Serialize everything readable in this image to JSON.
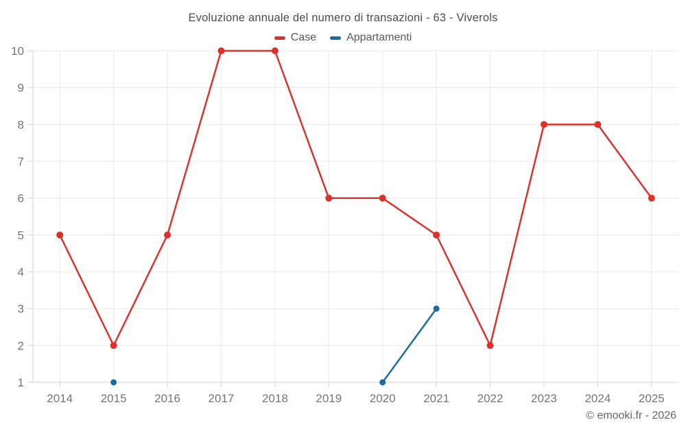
{
  "title": "Evoluzione annuale del numero di transazioni - 63 - Viverols",
  "footer": "© emooki.fr - 2026",
  "legend": {
    "items": [
      {
        "label": "Case",
        "color": "#db322c"
      },
      {
        "label": "Appartamenti",
        "color": "#1a6ca3"
      }
    ]
  },
  "chart_data": {
    "type": "line",
    "categories": [
      "2014",
      "2015",
      "2016",
      "2017",
      "2018",
      "2019",
      "2020",
      "2021",
      "2022",
      "2023",
      "2024",
      "2025"
    ],
    "series": [
      {
        "name": "Case",
        "color": "#db322c",
        "values": [
          5,
          2,
          5,
          10,
          10,
          6,
          6,
          5,
          2,
          8,
          8,
          6
        ]
      },
      {
        "name": "Appartamenti",
        "color": "#1a6ca3",
        "values": [
          null,
          1,
          null,
          null,
          null,
          null,
          1,
          3,
          null,
          null,
          null,
          null
        ]
      }
    ],
    "title": "Evoluzione annuale del numero di transazioni - 63 - Viverols",
    "xlabel": "",
    "ylabel": "",
    "ylim": [
      1,
      10
    ],
    "yticks": [
      1,
      2,
      3,
      4,
      5,
      6,
      7,
      8,
      9,
      10
    ],
    "grid": true,
    "legend_position": "top"
  },
  "style": {
    "gridline_color": "#e9e9e9",
    "axis_color": "#d2d2d2",
    "tick_label_color": "#757575"
  }
}
